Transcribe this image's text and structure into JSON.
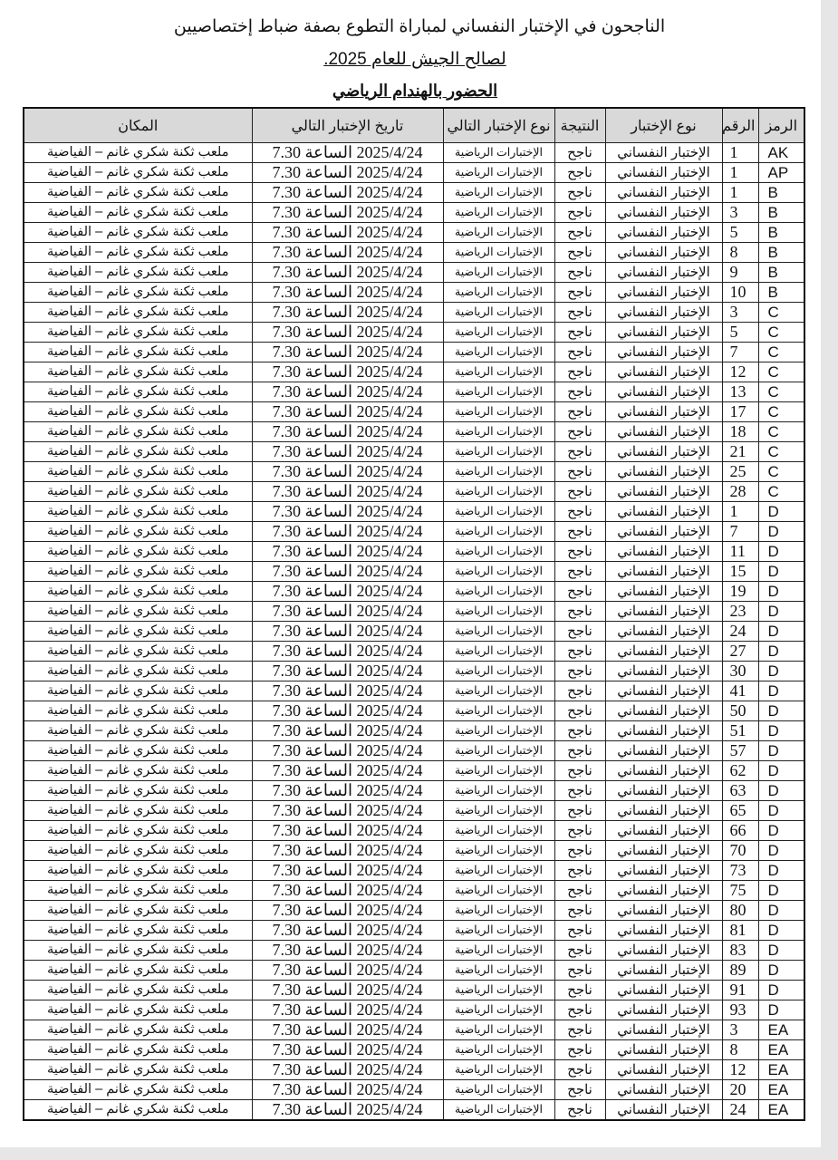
{
  "title_line1": "الناجحون في الإختبار النفساني لمباراة التطوع بصفة ضباط إختصاصيين",
  "title_line2": "لصالح الجيش للعام 2025.",
  "title_line3": "الحضور بالهندام الرياضي",
  "columns": {
    "code": "الرمز",
    "number": "الرقم",
    "test_type": "نوع الإختبار",
    "result": "النتيجة",
    "next_test_type": "نوع الإختبار التالي",
    "next_test_date": "تاريخ الإختبار التالي",
    "place": "المكان"
  },
  "rows": [
    [
      "AK",
      "1"
    ],
    [
      "AP",
      "1"
    ],
    [
      "B",
      "1"
    ],
    [
      "B",
      "3"
    ],
    [
      "B",
      "5"
    ],
    [
      "B",
      "8"
    ],
    [
      "B",
      "9"
    ],
    [
      "B",
      "10"
    ],
    [
      "C",
      "3"
    ],
    [
      "C",
      "5"
    ],
    [
      "C",
      "7"
    ],
    [
      "C",
      "12"
    ],
    [
      "C",
      "13"
    ],
    [
      "C",
      "17"
    ],
    [
      "C",
      "18"
    ],
    [
      "C",
      "21"
    ],
    [
      "C",
      "25"
    ],
    [
      "C",
      "28"
    ],
    [
      "D",
      "1"
    ],
    [
      "D",
      "7"
    ],
    [
      "D",
      "11"
    ],
    [
      "D",
      "15"
    ],
    [
      "D",
      "19"
    ],
    [
      "D",
      "23"
    ],
    [
      "D",
      "24"
    ],
    [
      "D",
      "27"
    ],
    [
      "D",
      "30"
    ],
    [
      "D",
      "41"
    ],
    [
      "D",
      "50"
    ],
    [
      "D",
      "51"
    ],
    [
      "D",
      "57"
    ],
    [
      "D",
      "62"
    ],
    [
      "D",
      "63"
    ],
    [
      "D",
      "65"
    ],
    [
      "D",
      "66"
    ],
    [
      "D",
      "70"
    ],
    [
      "D",
      "73"
    ],
    [
      "D",
      "75"
    ],
    [
      "D",
      "80"
    ],
    [
      "D",
      "81"
    ],
    [
      "D",
      "83"
    ],
    [
      "D",
      "89"
    ],
    [
      "D",
      "91"
    ],
    [
      "D",
      "93"
    ],
    [
      "EA",
      "3"
    ],
    [
      "EA",
      "8"
    ],
    [
      "EA",
      "12"
    ],
    [
      "EA",
      "20"
    ],
    [
      "EA",
      "24"
    ]
  ],
  "row_common": {
    "test_type": "الإختبار النفساني",
    "result": "ناجح",
    "next_test_type": "الإختبارات الرياضية",
    "next_test_date": "2025/4/24 الساعة 7.30",
    "place": "ملعب ثكنة شكري غانم – الفياضية"
  }
}
